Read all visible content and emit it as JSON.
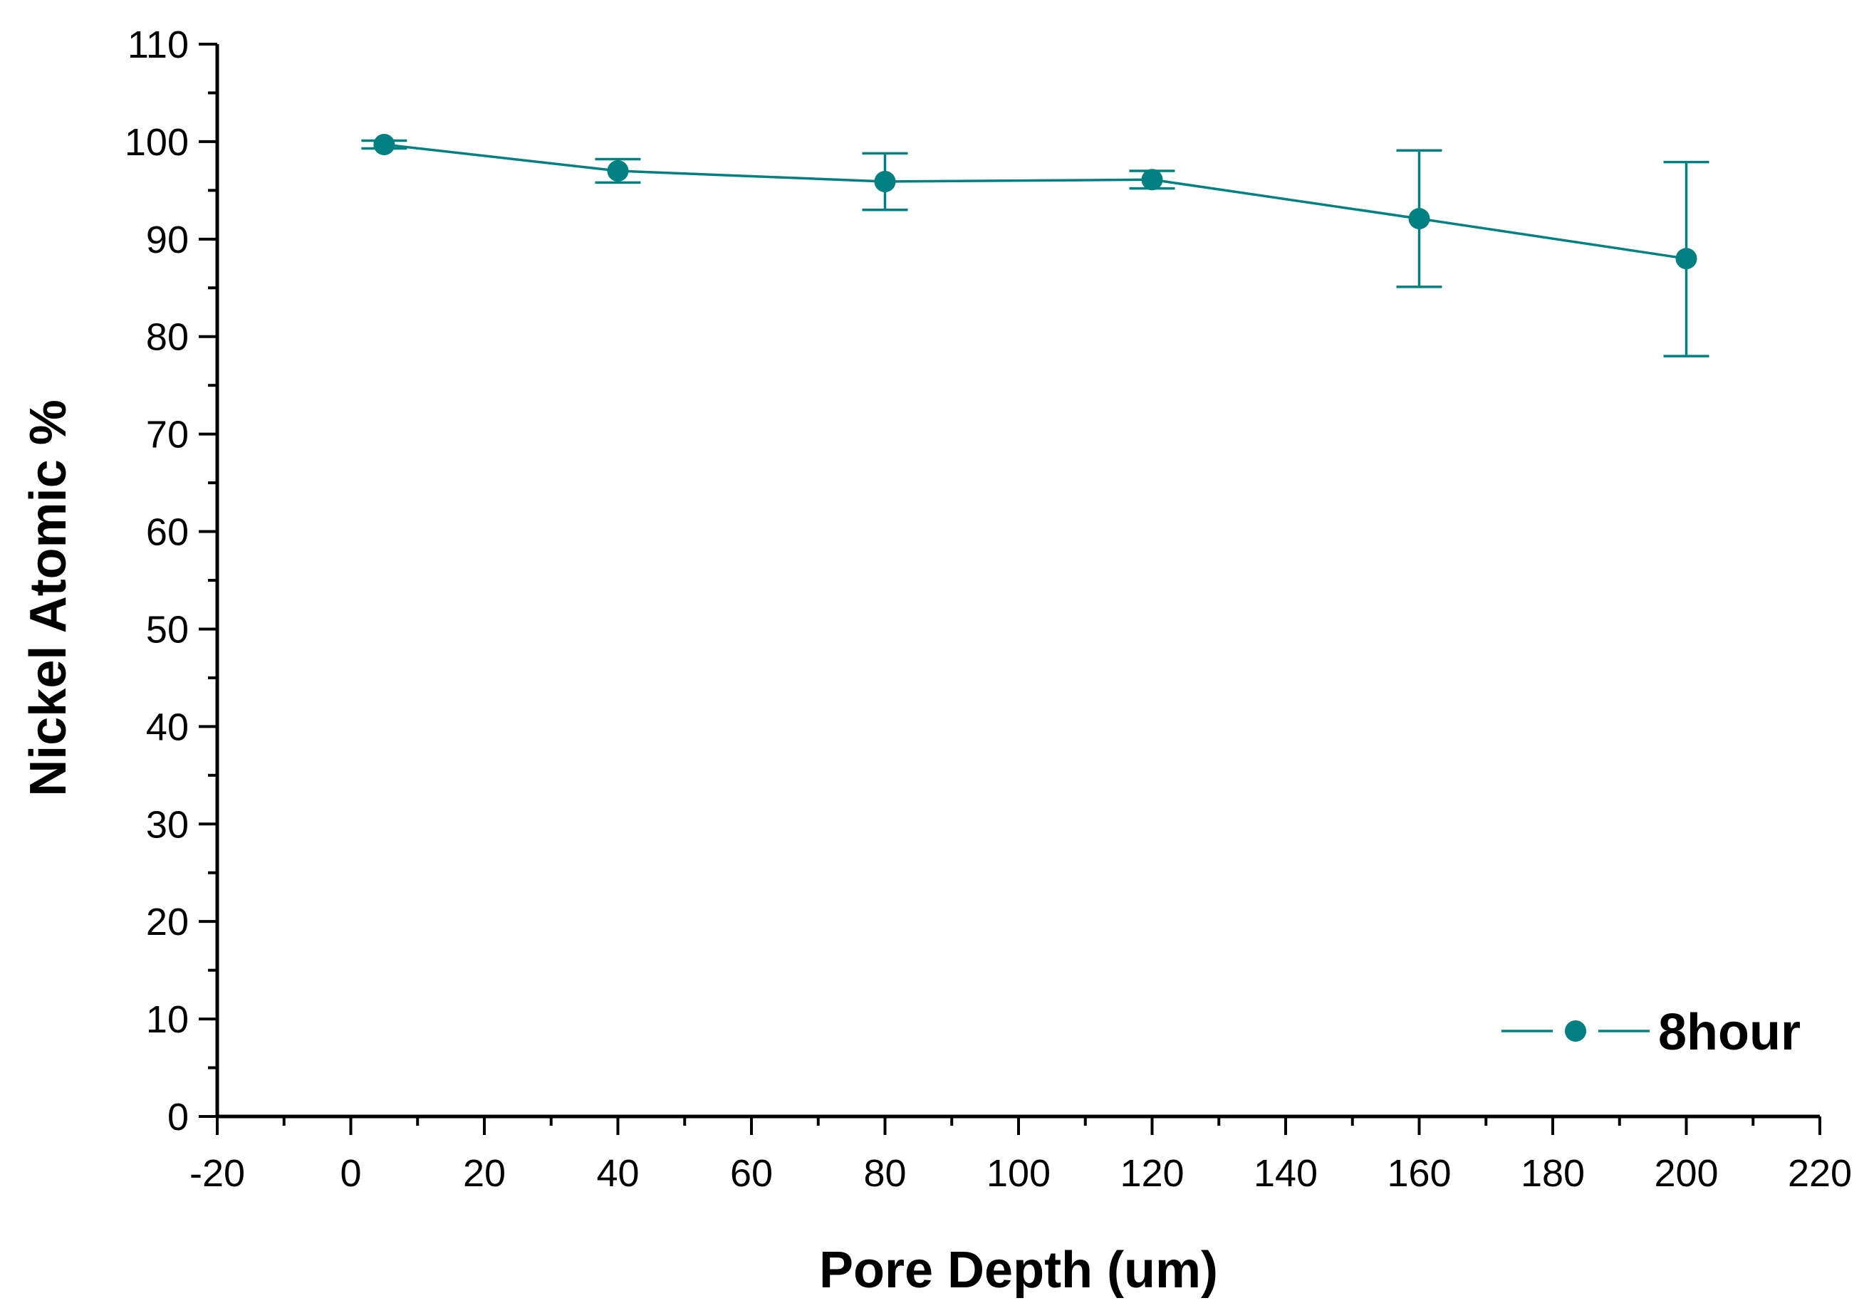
{
  "chart_data": {
    "type": "line",
    "title": "",
    "xlabel": "Pore Depth (um)",
    "ylabel": "Nickel Atomic %",
    "xlim": [
      -20,
      220
    ],
    "ylim": [
      0,
      110
    ],
    "xticks": [
      -20,
      0,
      20,
      40,
      60,
      80,
      100,
      120,
      140,
      160,
      180,
      200,
      220
    ],
    "yticks": [
      0,
      10,
      20,
      30,
      40,
      50,
      60,
      70,
      80,
      90,
      100,
      110
    ],
    "xtick_labels": [
      "-20",
      "0",
      "20",
      "40",
      "60",
      "80",
      "100",
      "120",
      "140",
      "160",
      "180",
      "200",
      "220"
    ],
    "ytick_labels": [
      "0",
      "10",
      "20",
      "30",
      "40",
      "50",
      "60",
      "70",
      "80",
      "90",
      "100",
      "110"
    ],
    "grid": false,
    "legend_position": "bottom-right",
    "series": [
      {
        "name": "8hour",
        "color": "#008080",
        "marker": "circle",
        "points": [
          {
            "x": 5,
            "y": 99.7,
            "err_low": 99.3,
            "err_high": 100.1
          },
          {
            "x": 40,
            "y": 97.0,
            "err_low": 95.8,
            "err_high": 98.2
          },
          {
            "x": 80,
            "y": 95.9,
            "err_low": 93.0,
            "err_high": 98.8
          },
          {
            "x": 120,
            "y": 96.1,
            "err_low": 95.2,
            "err_high": 97.0
          },
          {
            "x": 160,
            "y": 92.1,
            "err_low": 85.1,
            "err_high": 99.1
          },
          {
            "x": 200,
            "y": 88.0,
            "err_low": 78.0,
            "err_high": 97.9
          }
        ]
      }
    ]
  }
}
